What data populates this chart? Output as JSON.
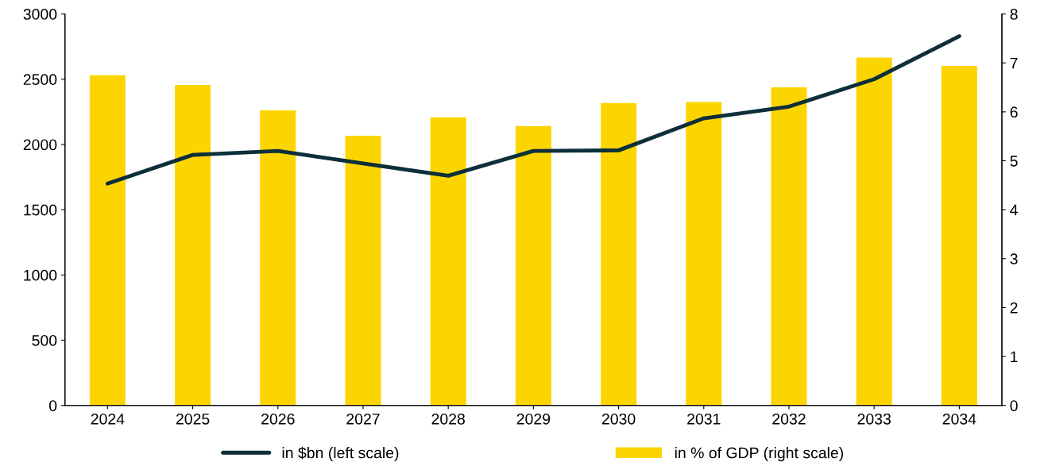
{
  "chart_data": {
    "type": "bar",
    "categories": [
      "2024",
      "2025",
      "2026",
      "2027",
      "2028",
      "2029",
      "2030",
      "2031",
      "2032",
      "2033",
      "2034"
    ],
    "series": [
      {
        "name": "in $bn (left scale)",
        "type": "line",
        "color": "#0d2f3a",
        "values": [
          1700,
          1920,
          1950,
          1855,
          1760,
          1950,
          1955,
          2200,
          2290,
          2500,
          2830
        ]
      },
      {
        "name": "in % of GDP (right scale)",
        "axis": "y2",
        "color": "#fcd500",
        "values": [
          6.75,
          6.55,
          6.03,
          5.51,
          5.89,
          5.71,
          6.18,
          6.2,
          6.5,
          7.11,
          6.94
        ]
      }
    ],
    "ylim": [
      0,
      3000
    ],
    "yticks": [
      0,
      500,
      1000,
      1500,
      2000,
      2500,
      3000
    ],
    "y2lim": [
      0,
      8
    ],
    "y2ticks": [
      0,
      1,
      2,
      3,
      4,
      5,
      6,
      7,
      8
    ],
    "grid": false,
    "legend": "bottom"
  }
}
